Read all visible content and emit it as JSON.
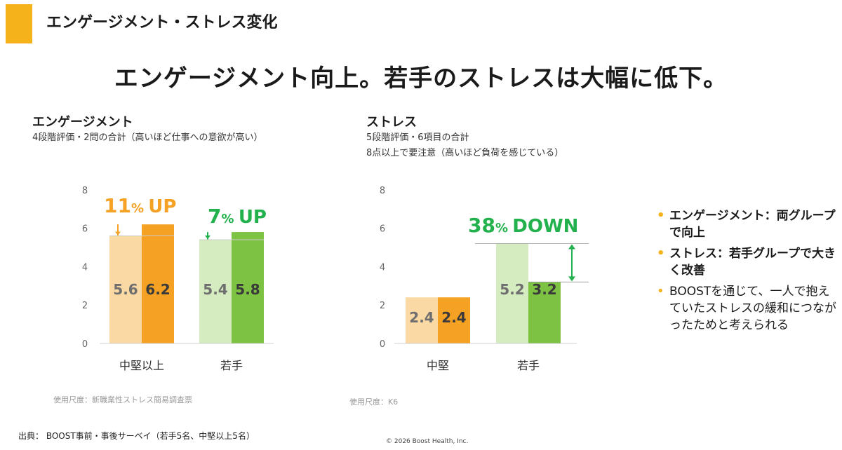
{
  "header": {
    "section_title": "エンゲージメント・ストレス変化",
    "headline": "エンゲージメント向上。若手のストレスは大幅に低下。"
  },
  "colors": {
    "accent": "#F6B21A",
    "orange_dark": "#F4A124",
    "orange_light": "#FAD9A4",
    "green_dark": "#7DC242",
    "green_light": "#D4ECC0",
    "green_text": "#22B14C"
  },
  "engagement": {
    "title": "エンゲージメント",
    "subtitle": "4段階評価・2問の合計（高いほど仕事への意欲が高い）",
    "note": "使用尺度：新職業性ストレス簡易調査票"
  },
  "stress": {
    "title": "ストレス",
    "subtitle_1": "5段階評価・6項目の合計",
    "subtitle_2": "8点以上で要注意（高いほど負荷を感じている）",
    "note": "使用尺度：K6"
  },
  "chart_data": [
    {
      "type": "bar",
      "categories": [
        "中堅以上",
        "若手"
      ],
      "series": [
        {
          "values": [
            5.6,
            5.4
          ]
        },
        {
          "values": [
            6.2,
            5.8
          ]
        }
      ],
      "value_labels": [
        [
          "5.6",
          "6.2"
        ],
        [
          "5.4",
          "5.8"
        ]
      ],
      "change_labels": [
        {
          "num": "11",
          "unit": "%",
          "word": "UP"
        },
        {
          "num": "7",
          "unit": "%",
          "word": "UP"
        }
      ],
      "yticks": [
        0,
        2,
        4,
        6,
        8
      ],
      "ytick_labels": [
        "0",
        "2",
        "4",
        "6",
        "8"
      ],
      "ylim": [
        0,
        8
      ]
    },
    {
      "type": "bar",
      "categories": [
        "中堅",
        "若手"
      ],
      "series": [
        {
          "values": [
            2.4,
            5.2
          ]
        },
        {
          "values": [
            2.4,
            3.2
          ]
        }
      ],
      "value_labels": [
        [
          "2.4",
          "2.4"
        ],
        [
          "5.2",
          "3.2"
        ]
      ],
      "change_labels": [
        null,
        {
          "num": "38",
          "unit": "%",
          "word": "DOWN"
        }
      ],
      "yticks": [
        0,
        2,
        4,
        6,
        8
      ],
      "ytick_labels": [
        "0",
        "2",
        "4",
        "6",
        "8"
      ],
      "ylim": [
        0,
        8
      ]
    }
  ],
  "bullets": [
    "エンゲージメント：両グループで向上",
    "ストレス：若手グループで大きく改善",
    "BOOSTを通じて、一人で抱えていたストレスの緩和につながったためと考えられる"
  ],
  "footer": {
    "source": "出典： BOOST事前・事後サーベイ（若手5名、中堅以上5名）",
    "copyright": "© 2026 Boost Health, Inc."
  }
}
